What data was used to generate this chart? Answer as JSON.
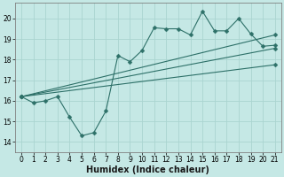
{
  "xlabel": "Humidex (Indice chaleur)",
  "ylabel": "",
  "xlim": [
    -0.5,
    21.5
  ],
  "ylim": [
    13.5,
    20.75
  ],
  "yticks": [
    14,
    15,
    16,
    17,
    18,
    19,
    20
  ],
  "xticks": [
    0,
    1,
    2,
    3,
    4,
    5,
    6,
    7,
    8,
    9,
    10,
    11,
    12,
    13,
    14,
    15,
    16,
    17,
    18,
    19,
    20,
    21
  ],
  "bg_color": "#c5e8e5",
  "grid_color": "#aad4d0",
  "line_color": "#2d7068",
  "line1_x": [
    0,
    1,
    2,
    3,
    4,
    5,
    6,
    7,
    8,
    9,
    10,
    11,
    12,
    13,
    14,
    15,
    16,
    17,
    18,
    19,
    20,
    21
  ],
  "line1_y": [
    16.2,
    15.9,
    16.0,
    16.2,
    15.2,
    14.3,
    14.45,
    15.5,
    18.2,
    17.9,
    18.45,
    19.55,
    19.5,
    19.5,
    19.2,
    20.35,
    19.4,
    19.4,
    20.0,
    19.25,
    18.65,
    18.7
  ],
  "straight_lines": [
    [
      16.2,
      19.2
    ],
    [
      16.2,
      18.55
    ],
    [
      16.2,
      17.75
    ]
  ],
  "marker_size": 2.5,
  "linewidth": 0.8,
  "tick_fontsize": 5.5,
  "xlabel_fontsize": 7
}
